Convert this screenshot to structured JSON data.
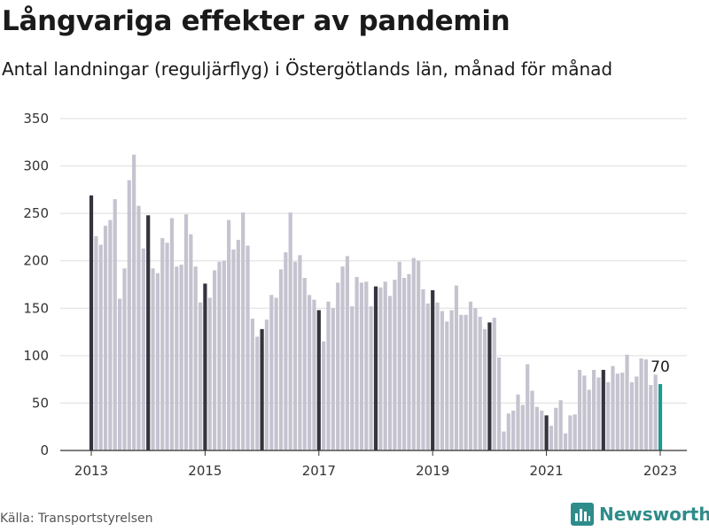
{
  "header": {
    "title": "Långvariga effekter av pandemin",
    "subtitle": "Antal landningar (reguljärflyg) i Östergötlands län, månad för månad"
  },
  "footer": {
    "source": "Källa: Transportstyrelsen",
    "brand": "Newsworthy",
    "brand_icon": "bar-chart-logo-icon"
  },
  "colors": {
    "bar": "#c5c3cf",
    "january": "#35333d",
    "latest": "#1d9a8f",
    "grid": "#dddddd",
    "brand": "#2e8c8a"
  },
  "chart_data": {
    "type": "bar",
    "title": "Långvariga effekter av pandemin",
    "subtitle": "Antal landningar (reguljärflyg) i Östergötlands län, månad för månad",
    "x_start": "2013-01",
    "interval": "month",
    "ylim": [
      0,
      350
    ],
    "yticks": [
      0,
      50,
      100,
      150,
      200,
      250,
      300,
      350
    ],
    "xticks": [
      "2013",
      "2015",
      "2017",
      "2019",
      "2021",
      "2023"
    ],
    "grid": true,
    "highlight": "January bars dark, latest month teal",
    "annotation": {
      "month": "2023-01",
      "text": "70"
    },
    "values": [
      269,
      226,
      217,
      237,
      243,
      265,
      160,
      192,
      285,
      312,
      258,
      213,
      248,
      192,
      187,
      224,
      219,
      245,
      194,
      196,
      249,
      228,
      194,
      156,
      176,
      161,
      190,
      199,
      200,
      243,
      212,
      222,
      251,
      216,
      139,
      120,
      128,
      138,
      164,
      161,
      191,
      209,
      251,
      199,
      206,
      182,
      164,
      159,
      148,
      115,
      157,
      150,
      177,
      194,
      205,
      152,
      183,
      177,
      178,
      152,
      173,
      172,
      178,
      163,
      180,
      199,
      182,
      186,
      203,
      200,
      170,
      155,
      169,
      156,
      147,
      136,
      148,
      174,
      143,
      143,
      157,
      150,
      141,
      128,
      135,
      140,
      98,
      20,
      39,
      42,
      59,
      48,
      91,
      63,
      46,
      42,
      37,
      26,
      45,
      53,
      18,
      37,
      38,
      85,
      79,
      64,
      85,
      77,
      85,
      72,
      89,
      81,
      82,
      101,
      72,
      78,
      97,
      96,
      69,
      80,
      70
    ]
  }
}
